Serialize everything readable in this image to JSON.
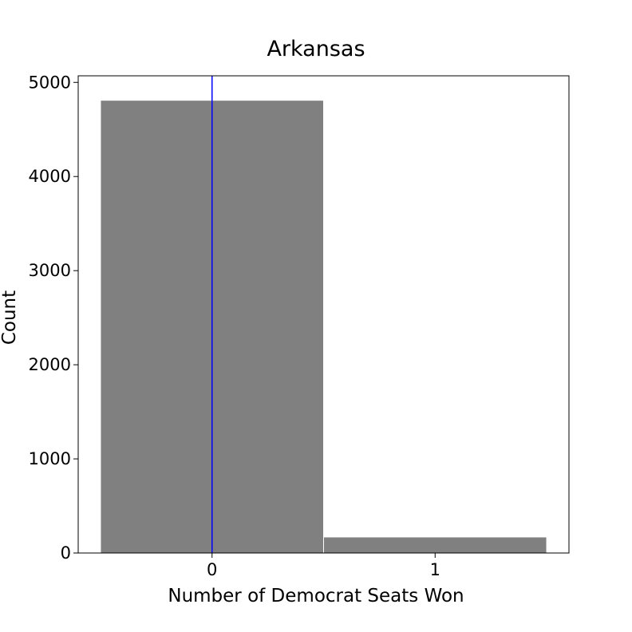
{
  "chart_data": {
    "type": "bar",
    "title": "Arkansas",
    "xlabel": "Number of Democrat Seats Won",
    "ylabel": "Count",
    "categories": [
      "0",
      "1"
    ],
    "values": [
      4810,
      170
    ],
    "ylim": [
      0,
      5070
    ],
    "yticks": [
      0,
      1000,
      2000,
      3000,
      4000,
      5000
    ],
    "xlim": [
      -0.6,
      1.6
    ],
    "grid": false,
    "bar_color": "#808080",
    "bar_edge_color": "#ffffff",
    "reference_line": {
      "x": 0,
      "color": "#0000ff"
    }
  }
}
